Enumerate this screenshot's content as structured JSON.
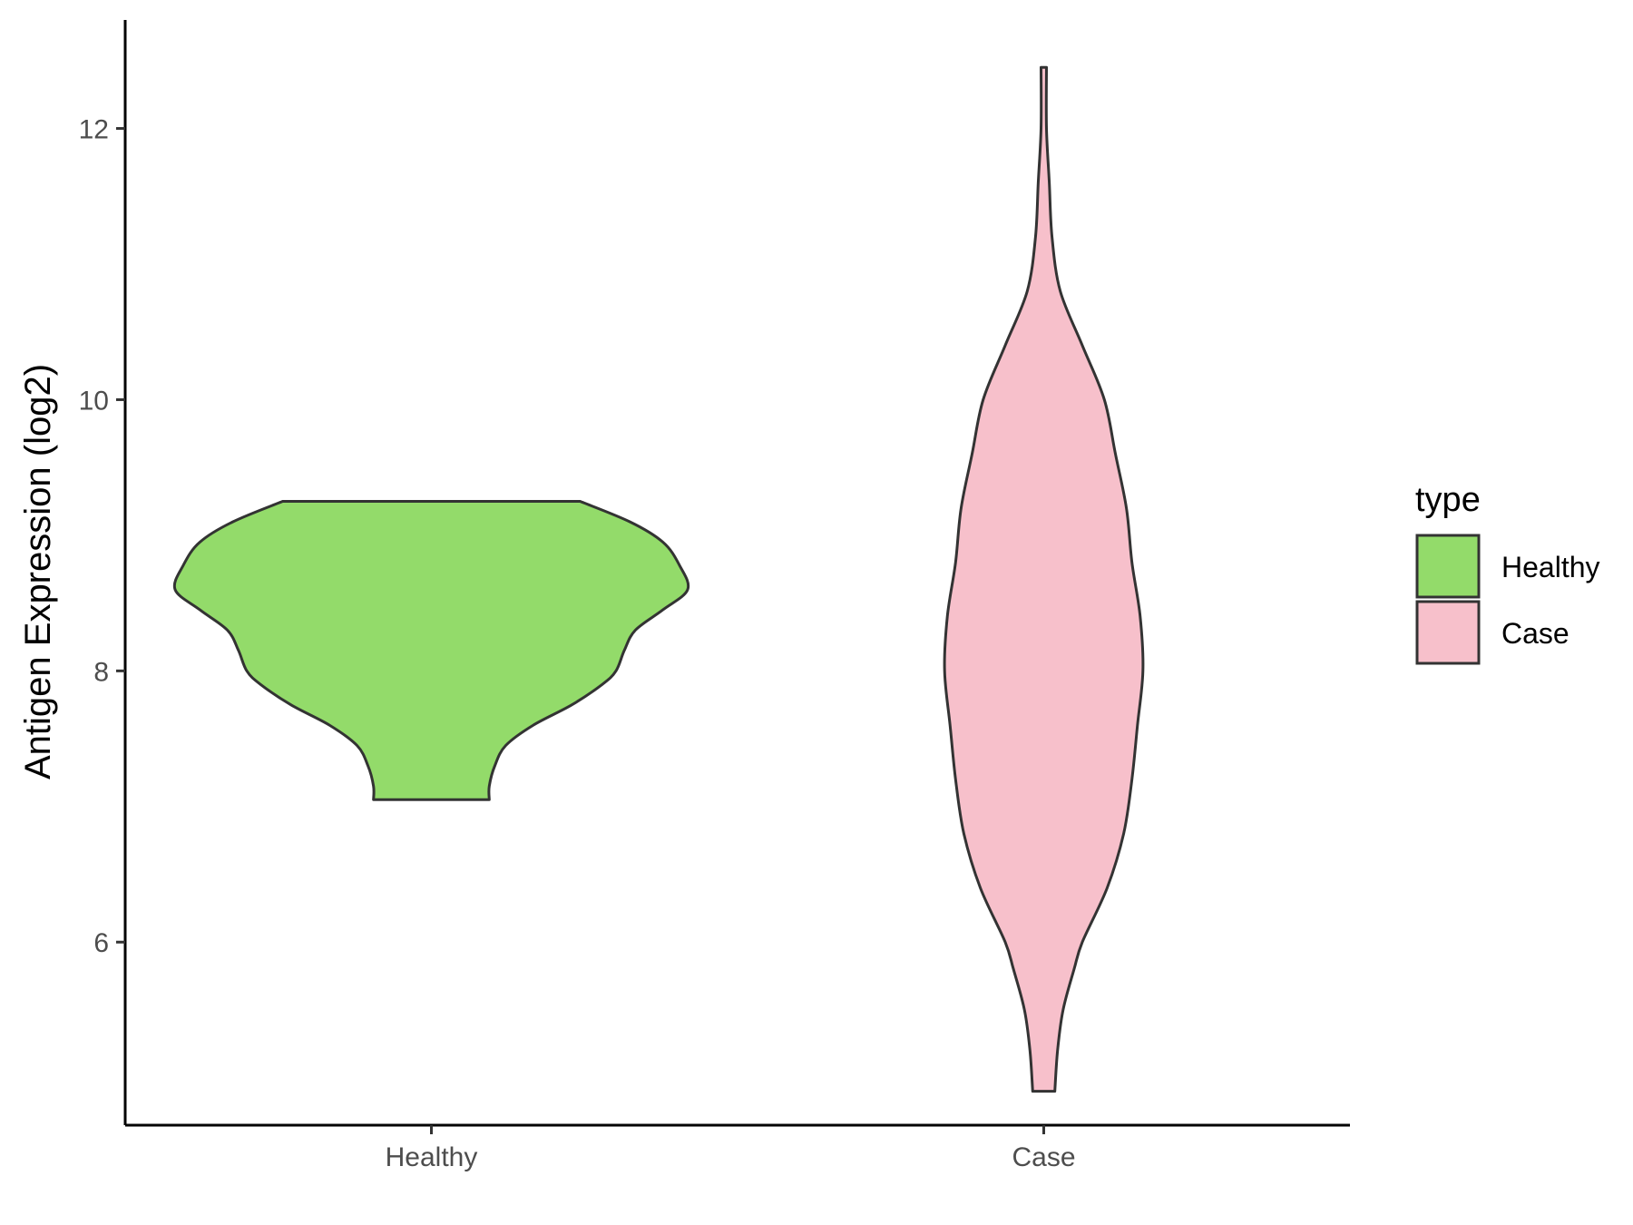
{
  "chart_data": {
    "type": "violin",
    "ylabel": "Antigen Expression (log2)",
    "xlabel": "",
    "categories": [
      "Healthy",
      "Case"
    ],
    "ylim": [
      4.65,
      12.8
    ],
    "yticks": [
      6,
      8,
      10,
      12
    ],
    "grid": false,
    "legend": {
      "title": "type",
      "position": "right",
      "entries": [
        {
          "label": "Healthy",
          "color": "#93DB6A"
        },
        {
          "label": "Case",
          "color": "#F7C0CB"
        }
      ]
    },
    "series": [
      {
        "category": "Healthy",
        "color": "#93DB6A",
        "profile": [
          [
            7.05,
            0.21
          ],
          [
            7.15,
            0.21
          ],
          [
            7.3,
            0.23
          ],
          [
            7.45,
            0.27
          ],
          [
            7.6,
            0.37
          ],
          [
            7.75,
            0.51
          ],
          [
            7.9,
            0.62
          ],
          [
            8.0,
            0.67
          ],
          [
            8.15,
            0.7
          ],
          [
            8.3,
            0.74
          ],
          [
            8.45,
            0.84
          ],
          [
            8.6,
            0.93
          ],
          [
            8.78,
            0.9
          ],
          [
            8.95,
            0.84
          ],
          [
            9.1,
            0.72
          ],
          [
            9.25,
            0.54
          ]
        ]
      },
      {
        "category": "Case",
        "color": "#F7C0CB",
        "profile": [
          [
            4.9,
            0.04
          ],
          [
            5.2,
            0.05
          ],
          [
            5.5,
            0.07
          ],
          [
            5.8,
            0.11
          ],
          [
            6.0,
            0.14
          ],
          [
            6.4,
            0.23
          ],
          [
            6.8,
            0.29
          ],
          [
            7.2,
            0.32
          ],
          [
            7.6,
            0.34
          ],
          [
            8.0,
            0.36
          ],
          [
            8.4,
            0.35
          ],
          [
            8.8,
            0.32
          ],
          [
            9.2,
            0.3
          ],
          [
            9.6,
            0.26
          ],
          [
            10.0,
            0.22
          ],
          [
            10.4,
            0.14
          ],
          [
            10.8,
            0.06
          ],
          [
            11.2,
            0.03
          ],
          [
            11.6,
            0.02
          ],
          [
            12.0,
            0.01
          ],
          [
            12.45,
            0.01
          ]
        ]
      }
    ]
  }
}
